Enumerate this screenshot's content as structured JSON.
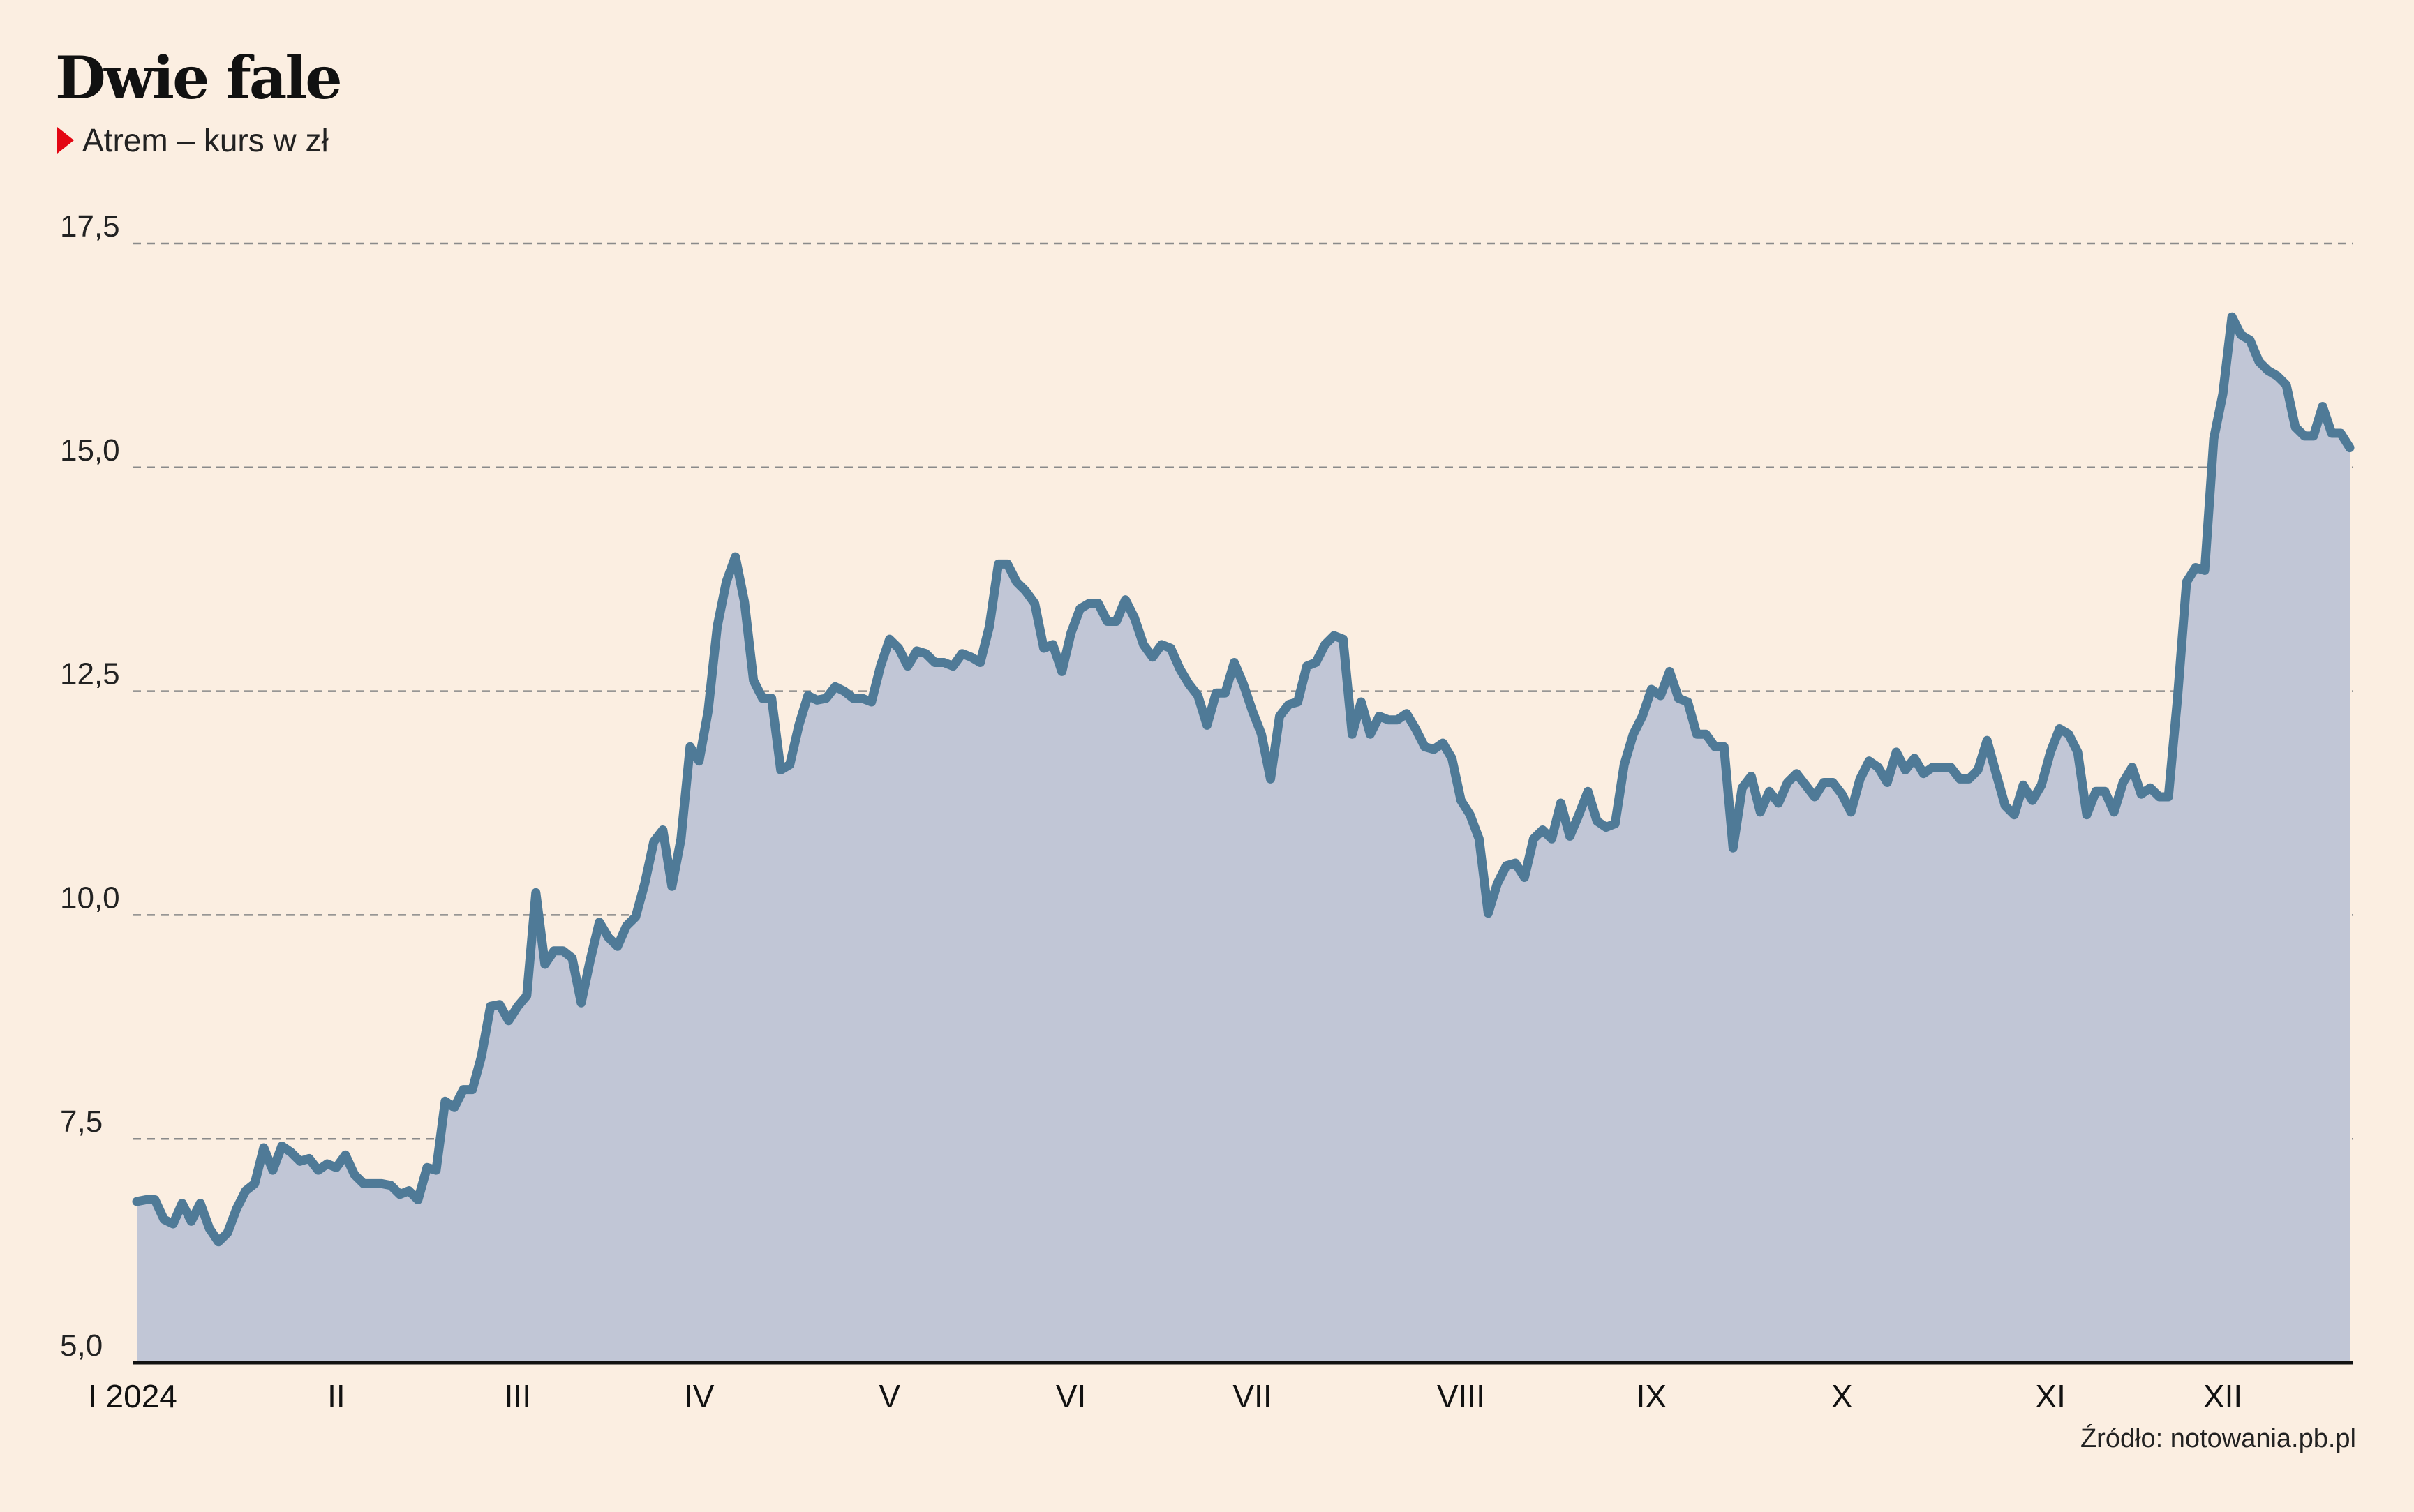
{
  "title": "Dwie fale",
  "subtitle": "Atrem – kurs w zł",
  "source": "Źródło: notowania.pb.pl",
  "colors": {
    "background": "#FBEEE1",
    "line": "#4F7A97",
    "area": "#C1C6D6",
    "marker": "#E30613",
    "grid": "#8A8A8A",
    "axis": "#111111"
  },
  "chart_data": {
    "type": "area",
    "title": "Dwie fale",
    "subtitle": "Atrem – kurs w zł",
    "xlabel": "",
    "ylabel": "",
    "ylim": [
      5.0,
      17.5
    ],
    "grid": true,
    "y_ticks": [
      {
        "value": 5.0,
        "label": "5,0"
      },
      {
        "value": 7.5,
        "label": "7,5"
      },
      {
        "value": 10.0,
        "label": "10,0"
      },
      {
        "value": 12.5,
        "label": "12,5"
      },
      {
        "value": 15.0,
        "label": "15,0"
      },
      {
        "value": 17.5,
        "label": "17,5"
      }
    ],
    "x_ticks": [
      {
        "index": 0,
        "label": "I 2024"
      },
      {
        "index": 22,
        "label": "II"
      },
      {
        "index": 42,
        "label": "III"
      },
      {
        "index": 62,
        "label": "IV"
      },
      {
        "index": 83,
        "label": "V"
      },
      {
        "index": 103,
        "label": "VI"
      },
      {
        "index": 123,
        "label": "VII"
      },
      {
        "index": 146,
        "label": "VIII"
      },
      {
        "index": 167,
        "label": "IX"
      },
      {
        "index": 188,
        "label": "X"
      },
      {
        "index": 211,
        "label": "XI"
      },
      {
        "index": 230,
        "label": "XII"
      }
    ],
    "series": [
      {
        "values": [
          6.8,
          6.82,
          6.82,
          6.6,
          6.55,
          6.78,
          6.58,
          6.78,
          6.5,
          6.35,
          6.45,
          6.72,
          6.92,
          7.0,
          7.4,
          7.15,
          7.42,
          7.35,
          7.25,
          7.28,
          7.15,
          7.22,
          7.18,
          7.32,
          7.1,
          7.0,
          7.0,
          7.0,
          6.98,
          6.88,
          6.92,
          6.82,
          7.18,
          7.15,
          7.92,
          7.85,
          8.05,
          8.05,
          8.42,
          8.98,
          9.0,
          8.82,
          8.98,
          9.1,
          10.25,
          9.45,
          9.6,
          9.6,
          9.52,
          9.02,
          9.5,
          9.92,
          9.75,
          9.65,
          9.88,
          9.98,
          10.35,
          10.82,
          10.95,
          10.32,
          10.85,
          11.88,
          11.72,
          12.28,
          13.22,
          13.72,
          14.0,
          13.5,
          12.62,
          12.42,
          12.42,
          11.62,
          11.68,
          12.12,
          12.45,
          12.4,
          12.42,
          12.55,
          12.5,
          12.42,
          12.42,
          12.38,
          12.78,
          13.08,
          12.98,
          12.78,
          12.95,
          12.92,
          12.82,
          12.82,
          12.78,
          12.92,
          12.88,
          12.82,
          13.22,
          13.92,
          13.92,
          13.72,
          13.62,
          13.48,
          12.98,
          13.02,
          12.72,
          13.15,
          13.42,
          13.48,
          13.48,
          13.28,
          13.28,
          13.52,
          13.32,
          13.02,
          12.88,
          13.02,
          12.98,
          12.75,
          12.58,
          12.45,
          12.12,
          12.48,
          12.48,
          12.82,
          12.58,
          12.28,
          12.02,
          11.52,
          12.22,
          12.35,
          12.38,
          12.78,
          12.82,
          13.02,
          13.12,
          13.08,
          12.02,
          12.38,
          12.02,
          12.22,
          12.18,
          12.18,
          12.25,
          12.08,
          11.88,
          11.85,
          11.92,
          11.75,
          11.28,
          11.12,
          10.85,
          10.02,
          10.35,
          10.55,
          10.58,
          10.42,
          10.85,
          10.95,
          10.85,
          11.25,
          10.88,
          11.12,
          11.38,
          11.05,
          10.98,
          11.02,
          11.68,
          12.02,
          12.22,
          12.52,
          12.45,
          12.72,
          12.42,
          12.38,
          12.02,
          12.02,
          11.88,
          11.88,
          10.75,
          11.42,
          11.55,
          11.15,
          11.38,
          11.25,
          11.48,
          11.58,
          11.45,
          11.32,
          11.48,
          11.48,
          11.35,
          11.15,
          11.52,
          11.72,
          11.65,
          11.48,
          11.82,
          11.62,
          11.75,
          11.58,
          11.65,
          11.65,
          11.65,
          11.52,
          11.52,
          11.62,
          11.95,
          11.58,
          11.22,
          11.12,
          11.45,
          11.28,
          11.45,
          11.82,
          12.08,
          12.02,
          11.82,
          11.12,
          11.38,
          11.38,
          11.15,
          11.48,
          11.65,
          11.35,
          11.42,
          11.32,
          11.32,
          12.42,
          13.72,
          13.88,
          13.85,
          15.32,
          15.82,
          16.68,
          16.48,
          16.42,
          16.18,
          16.08,
          16.02,
          15.92,
          15.45,
          15.35,
          15.35,
          15.68,
          15.38,
          15.38,
          15.22
        ]
      }
    ]
  }
}
